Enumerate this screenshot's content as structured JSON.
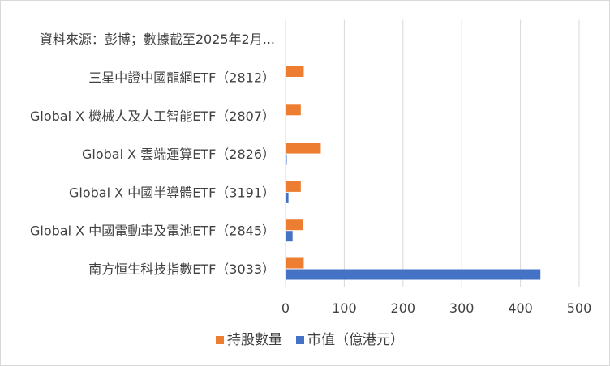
{
  "chart_data": {
    "type": "bar",
    "orientation": "horizontal",
    "categories": [
      "南方恒生科技指數ETF（3033）",
      "Global X 中國電動車及電池ETF（2845）",
      "Global X 中國半導體ETF（3191）",
      "Global X 雲端運算ETF（2826）",
      "Global X 機械人及人工智能ETF（2807）",
      "三星中證中國龍網ETF（2812）",
      "資料來源：彭博；數據截至2025年2月..."
    ],
    "series": [
      {
        "name": "持股數量",
        "color": "#ed7d31",
        "values": [
          31,
          29,
          26,
          60,
          26,
          31,
          null
        ]
      },
      {
        "name": "市值（億港元）",
        "color": "#4472c4",
        "values": [
          434,
          12,
          5,
          2,
          0,
          0,
          null
        ]
      }
    ],
    "xlim": [
      0,
      500
    ],
    "xticks": [
      "0",
      "100",
      "200",
      "300",
      "400",
      "500"
    ],
    "grid": true,
    "grid_color": "#d9d9d9",
    "legend": {
      "position": "bottom",
      "entries": [
        "持股數量",
        "市值（億港元）"
      ]
    },
    "title": "",
    "xlabel": "",
    "ylabel": ""
  }
}
